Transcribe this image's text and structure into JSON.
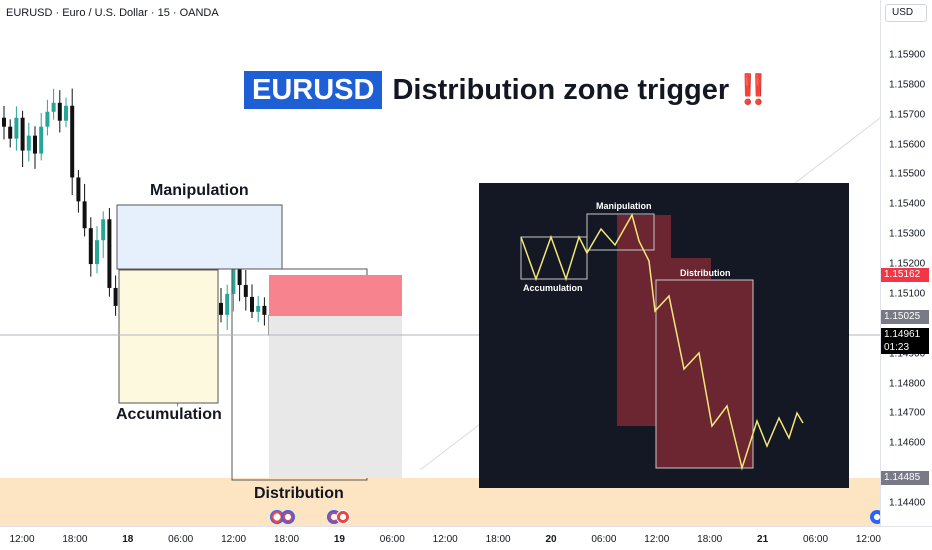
{
  "header": {
    "symbol_line": "EURUSD · Euro / U.S. Dollar · 15 · OANDA",
    "currency": "USD"
  },
  "headline": {
    "tag": "EURUSD",
    "text": "Distribution zone trigger",
    "emphasis": "‼️"
  },
  "zones": {
    "manipulation": "Manipulation",
    "accumulation": "Accumulation",
    "distribution": "Distribution"
  },
  "inset": {
    "manipulation": "Manipulation",
    "accumulation": "Accumulation",
    "distribution": "Distribution"
  },
  "price_axis": {
    "ticks": [
      "1.15900",
      "1.15800",
      "1.15700",
      "1.15600",
      "1.15500",
      "1.15400",
      "1.15300",
      "1.15200",
      "1.15100",
      "1.14900",
      "1.14800",
      "1.14700",
      "1.14600",
      "1.14400"
    ],
    "badges": {
      "stop": "1.15162",
      "entry": "1.15025",
      "last": "1.14961",
      "countdown": "01:23",
      "target": "1.14485"
    }
  },
  "time_axis": {
    "ticks": [
      {
        "label": "12:00",
        "bold": false
      },
      {
        "label": "18:00",
        "bold": false
      },
      {
        "label": "18",
        "bold": true
      },
      {
        "label": "06:00",
        "bold": false
      },
      {
        "label": "12:00",
        "bold": false
      },
      {
        "label": "18:00",
        "bold": false
      },
      {
        "label": "19",
        "bold": true
      },
      {
        "label": "06:00",
        "bold": false
      },
      {
        "label": "12:00",
        "bold": false
      },
      {
        "label": "18:00",
        "bold": false
      },
      {
        "label": "20",
        "bold": true
      },
      {
        "label": "06:00",
        "bold": false
      },
      {
        "label": "12:00",
        "bold": false
      },
      {
        "label": "18:00",
        "bold": false
      },
      {
        "label": "21",
        "bold": true
      },
      {
        "label": "06:00",
        "bold": false
      },
      {
        "label": "12:00",
        "bold": false
      }
    ]
  },
  "colors": {
    "bull": "#26a69a",
    "bear": "#111111",
    "stop_zone": "#f7838e",
    "target_zone": "#e8e8e8",
    "target_band": "#fde5c4",
    "inset_bg": "#141724",
    "inset_line": "#f2e676",
    "inset_block": "#6b2632",
    "headline_tag": "#1f5fd6",
    "manipulation_fill": "#e6effc",
    "accumulation_fill": "#fdf9de"
  },
  "chart_data": {
    "type": "candlestick",
    "title": "EURUSD · Euro / U.S. Dollar · 15 · OANDA",
    "ylim": [
      1.1437,
      1.1597
    ],
    "last_price": 1.14961,
    "levels": {
      "stop": 1.15162,
      "entry": 1.15025,
      "target": 1.14485
    },
    "close_path": [
      1.1566,
      1.1562,
      1.1569,
      1.1558,
      1.1563,
      1.1557,
      1.1566,
      1.1571,
      1.1574,
      1.1568,
      1.1573,
      1.1549,
      1.1541,
      1.1532,
      1.152,
      1.1528,
      1.1535,
      1.1512,
      1.1506,
      1.1496,
      1.1489,
      1.1479,
      1.1481,
      1.1477,
      1.1479,
      1.1483,
      1.1479,
      1.1476,
      1.1482,
      1.149,
      1.1496,
      1.1499,
      1.1502,
      1.1502,
      1.1507,
      1.1503,
      1.151,
      1.1519,
      1.1513,
      1.1509,
      1.1504,
      1.1506,
      1.1503,
      1.1496
    ]
  }
}
